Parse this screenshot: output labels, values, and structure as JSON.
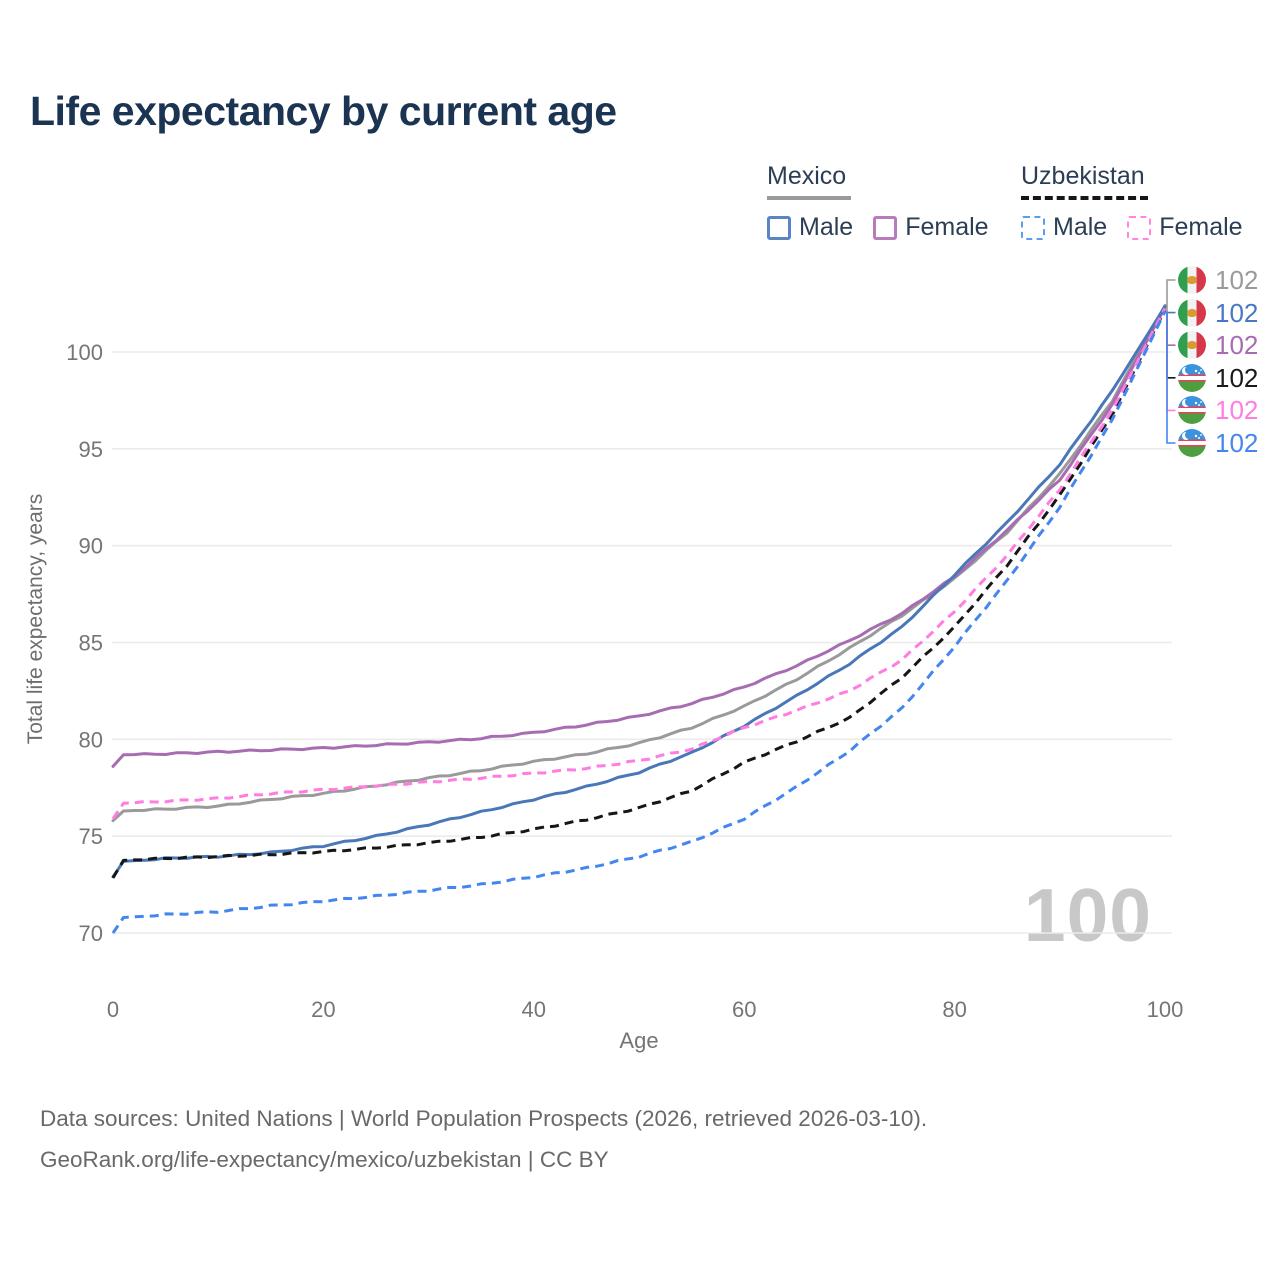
{
  "title": "Life expectancy by current age",
  "legend": {
    "groups": [
      {
        "country": "Mexico",
        "line_style": "solid",
        "items": [
          {
            "label": "Male",
            "color": "#5b84c4"
          },
          {
            "label": "Female",
            "color": "#b87cbc"
          }
        ]
      },
      {
        "country": "Uzbekistan",
        "line_style": "dashed",
        "items": [
          {
            "label": "Male",
            "color": "#5b9bf0"
          },
          {
            "label": "Female",
            "color": "#ff85e3"
          }
        ]
      }
    ]
  },
  "watermark_age": "100",
  "footer": {
    "line1": "Data sources: United Nations | World Population Prospects (2026, retrieved 2026-03-10).",
    "line2": "GeoRank.org/life-expectancy/mexico/uzbekistan | CC BY"
  },
  "chart_data": {
    "type": "line",
    "title": "Life expectancy by current age",
    "xlabel": "Age",
    "ylabel": "Total life expectancy, years",
    "xlim": [
      0,
      100
    ],
    "ylim": [
      69,
      103
    ],
    "xticks": [
      0,
      20,
      40,
      60,
      80,
      100
    ],
    "yticks": [
      70,
      75,
      80,
      85,
      90,
      95,
      100
    ],
    "grid": "horizontal",
    "legend_position": "top-right",
    "x": [
      0,
      1,
      5,
      10,
      15,
      20,
      25,
      30,
      35,
      40,
      45,
      50,
      55,
      60,
      65,
      70,
      75,
      80,
      85,
      90,
      95,
      100
    ],
    "series": [
      {
        "id": "mexico-total",
        "name": "Mexico",
        "sex": "total",
        "color": "#9a9a9a",
        "dashed": false,
        "values": [
          75.8,
          76.3,
          76.4,
          76.55,
          76.9,
          77.2,
          77.6,
          78.0,
          78.4,
          78.85,
          79.25,
          79.8,
          80.6,
          81.7,
          83.1,
          84.7,
          86.4,
          88.3,
          90.7,
          93.7,
          97.5,
          102.4
        ]
      },
      {
        "id": "mexico-female",
        "name": "Mexico Female",
        "sex": "female",
        "color": "#a76cb2",
        "dashed": false,
        "values": [
          78.6,
          79.2,
          79.25,
          79.35,
          79.45,
          79.55,
          79.7,
          79.85,
          80.05,
          80.35,
          80.75,
          81.2,
          81.85,
          82.7,
          83.8,
          85.1,
          86.5,
          88.4,
          90.8,
          93.4,
          97.3,
          102.3
        ]
      },
      {
        "id": "mexico-male",
        "name": "Mexico Male",
        "sex": "male",
        "color": "#4a77b8",
        "dashed": false,
        "values": [
          72.9,
          73.7,
          73.85,
          73.95,
          74.15,
          74.5,
          75.0,
          75.6,
          76.25,
          76.9,
          77.55,
          78.3,
          79.3,
          80.7,
          82.25,
          83.9,
          85.8,
          88.5,
          91.2,
          94.2,
          98.0,
          102.35
        ]
      },
      {
        "id": "uzbekistan-total",
        "name": "Uzbekistan",
        "sex": "total",
        "color": "#161616",
        "dashed": true,
        "values": [
          72.85,
          73.75,
          73.85,
          73.95,
          74.05,
          74.2,
          74.4,
          74.65,
          74.95,
          75.35,
          75.85,
          76.45,
          77.35,
          78.8,
          79.9,
          81.1,
          83.2,
          85.8,
          89.0,
          92.6,
          96.8,
          102.2
        ]
      },
      {
        "id": "uzbekistan-female",
        "name": "Uzbekistan Female",
        "sex": "female",
        "color": "#ff7ce1",
        "dashed": true,
        "values": [
          75.9,
          76.7,
          76.8,
          76.95,
          77.2,
          77.4,
          77.6,
          77.8,
          78.0,
          78.25,
          78.5,
          78.9,
          79.5,
          80.6,
          81.5,
          82.5,
          84.1,
          86.6,
          89.5,
          92.9,
          97.0,
          102.25
        ]
      },
      {
        "id": "uzbekistan-male",
        "name": "Uzbekistan Male",
        "sex": "male",
        "color": "#4486ef",
        "dashed": true,
        "values": [
          70.0,
          70.8,
          70.95,
          71.1,
          71.4,
          71.65,
          71.9,
          72.2,
          72.5,
          72.9,
          73.35,
          73.95,
          74.7,
          75.9,
          77.55,
          79.4,
          81.6,
          84.8,
          88.2,
          92.0,
          96.5,
          102.1
        ]
      }
    ],
    "endpoint_labels": [
      {
        "country": "Mexico",
        "flag": "mx",
        "value": "102",
        "color": "#9a9a9a"
      },
      {
        "country": "Mexico",
        "flag": "mx",
        "value": "102",
        "color": "#4a77c4"
      },
      {
        "country": "Mexico",
        "flag": "mx",
        "value": "102",
        "color": "#a76cb2"
      },
      {
        "country": "Uzbekistan",
        "flag": "uz",
        "value": "102",
        "color": "#1a1a1a"
      },
      {
        "country": "Uzbekistan",
        "flag": "uz",
        "value": "102",
        "color": "#ff7ce1"
      },
      {
        "country": "Uzbekistan",
        "flag": "uz",
        "value": "102",
        "color": "#4486ef"
      }
    ]
  }
}
